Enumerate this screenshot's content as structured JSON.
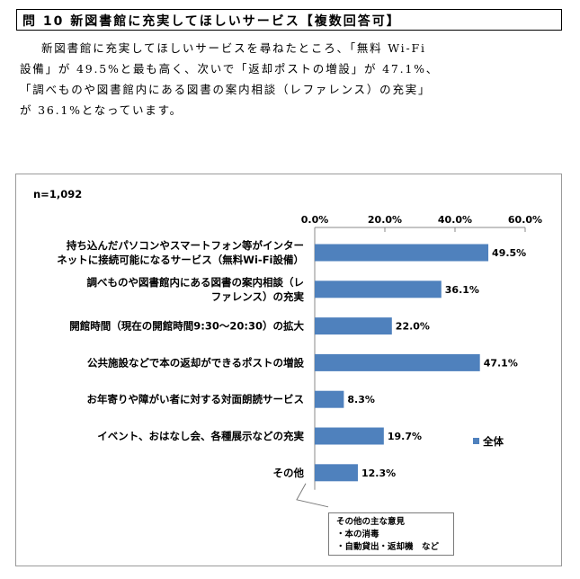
{
  "header": {
    "title": "問 10 新図書館に充実してほしいサービス【複数回答可】"
  },
  "description": {
    "lines": [
      "新図書館に充実してほしいサービスを尋ねたところ、「無料 Wi-Fi",
      "設備」が 49.5%と最も高く、次いで「返却ポストの増設」が 47.1%、",
      "「調べものや図書館内にある図書の案内相談（レファレンス）の充実」",
      "が 36.1%となっています。"
    ]
  },
  "chart_data": {
    "type": "bar",
    "orientation": "horizontal",
    "sample_size_label": "n=1,092",
    "categories": [
      [
        "持ち込んだパソコンやスマートフォン等がインター",
        "ネットに接続可能になるサービス（無料Wi-Fi設備）"
      ],
      [
        "調べものや図書館内にある図書の案内相談（レ",
        "ファレンス）の充実"
      ],
      [
        "開館時間（現在の開館時間9:30～20:30）の拡大"
      ],
      [
        "公共施設などで本の返却ができるポストの増設"
      ],
      [
        "お年寄りや障がい者に対する対面朗読サービス"
      ],
      [
        "イベント、おはなし会、各種展示などの充実"
      ],
      [
        "その他"
      ]
    ],
    "series": [
      {
        "name": "全体",
        "values": [
          49.5,
          36.1,
          22.0,
          47.1,
          8.3,
          19.7,
          12.3
        ],
        "color": "#4f81bd"
      }
    ],
    "value_labels": [
      "49.5%",
      "36.1%",
      "22.0%",
      "47.1%",
      "8.3%",
      "19.7%",
      "12.3%"
    ],
    "xlim": [
      0,
      60
    ],
    "x_ticks": [
      "0.0%",
      "20.0%",
      "40.0%",
      "60.0%"
    ],
    "axis_position": "top",
    "legend_position": "right",
    "grid": false
  },
  "note": {
    "title": "その他の主な意見",
    "items": [
      "・本の消毒",
      "・自動貸出・返却機　など"
    ]
  }
}
